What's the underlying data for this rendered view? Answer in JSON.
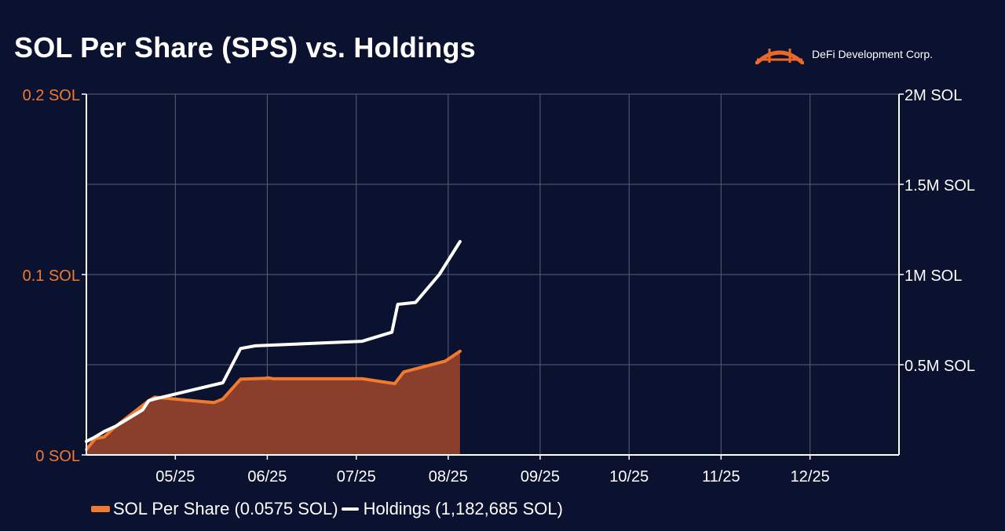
{
  "title": "SOL Per Share (SPS) vs. Holdings",
  "brand": {
    "name": "DeFi Development Corp.",
    "icon": "bridge-logo-icon",
    "color": "#e8692a"
  },
  "colors": {
    "background": "#0b1230",
    "sps": "#f07a30",
    "sps_fill": "#8a3f2c",
    "holdings": "#ffffff",
    "grid": "#5a6078",
    "left_axis_text": "#f07a30",
    "right_axis_text": "#ffffff"
  },
  "legend": {
    "sps_label": "SOL Per Share (0.0575 SOL)",
    "holdings_label": "Holdings (1,182,685 SOL)"
  },
  "chart_data": {
    "type": "line",
    "x_range": [
      "2025-04-01",
      "2025-12-31"
    ],
    "x_ticks": [
      {
        "label": "05/25",
        "date": "2025-05-01"
      },
      {
        "label": "06/25",
        "date": "2025-06-01"
      },
      {
        "label": "07/25",
        "date": "2025-07-01"
      },
      {
        "label": "08/25",
        "date": "2025-08-01"
      },
      {
        "label": "09/25",
        "date": "2025-09-01"
      },
      {
        "label": "10/25",
        "date": "2025-10-01"
      },
      {
        "label": "11/25",
        "date": "2025-11-01"
      },
      {
        "label": "12/25",
        "date": "2025-12-01"
      }
    ],
    "y_left": {
      "range": [
        0,
        0.2
      ],
      "ticks": [
        {
          "value": 0,
          "label": "0 SOL"
        },
        {
          "value": 0.1,
          "label": "0.1 SOL"
        },
        {
          "value": 0.2,
          "label": "0.2 SOL"
        }
      ]
    },
    "y_right": {
      "range": [
        0,
        2000000
      ],
      "ticks": [
        {
          "value": 500000,
          "label": "0.5M SOL"
        },
        {
          "value": 1000000,
          "label": "1M SOL"
        },
        {
          "value": 1500000,
          "label": "1.5M SOL"
        },
        {
          "value": 2000000,
          "label": "2M SOL"
        }
      ]
    },
    "grid": true,
    "series": [
      {
        "name": "SOL Per Share",
        "axis": "left",
        "style": "area",
        "points": [
          {
            "x": "2025-04-01",
            "y": 0.003
          },
          {
            "x": "2025-04-04",
            "y": 0.009
          },
          {
            "x": "2025-04-07",
            "y": 0.01
          },
          {
            "x": "2025-04-11",
            "y": 0.016
          },
          {
            "x": "2025-04-22",
            "y": 0.03
          },
          {
            "x": "2025-04-24",
            "y": 0.032
          },
          {
            "x": "2025-05-14",
            "y": 0.029
          },
          {
            "x": "2025-05-17",
            "y": 0.031
          },
          {
            "x": "2025-05-23",
            "y": 0.042
          },
          {
            "x": "2025-06-01",
            "y": 0.0425
          },
          {
            "x": "2025-06-01",
            "y": 0.0428
          },
          {
            "x": "2025-06-03",
            "y": 0.0422
          },
          {
            "x": "2025-07-03",
            "y": 0.0422
          },
          {
            "x": "2025-07-14",
            "y": 0.0395
          },
          {
            "x": "2025-07-17",
            "y": 0.046
          },
          {
            "x": "2025-07-31",
            "y": 0.052
          },
          {
            "x": "2025-08-05",
            "y": 0.0575
          }
        ]
      },
      {
        "name": "Holdings",
        "axis": "right",
        "style": "line",
        "points": [
          {
            "x": "2025-04-01",
            "y": 75000
          },
          {
            "x": "2025-04-04",
            "y": 100000
          },
          {
            "x": "2025-04-07",
            "y": 130000
          },
          {
            "x": "2025-04-11",
            "y": 160000
          },
          {
            "x": "2025-04-20",
            "y": 250000
          },
          {
            "x": "2025-04-22",
            "y": 300000
          },
          {
            "x": "2025-04-24",
            "y": 310000
          },
          {
            "x": "2025-05-17",
            "y": 400000
          },
          {
            "x": "2025-05-23",
            "y": 590000
          },
          {
            "x": "2025-05-28",
            "y": 605000
          },
          {
            "x": "2025-07-03",
            "y": 630000
          },
          {
            "x": "2025-07-13",
            "y": 680000
          },
          {
            "x": "2025-07-15",
            "y": 835000
          },
          {
            "x": "2025-07-21",
            "y": 845000
          },
          {
            "x": "2025-07-29",
            "y": 1000000
          },
          {
            "x": "2025-08-05",
            "y": 1182685
          }
        ]
      }
    ]
  }
}
